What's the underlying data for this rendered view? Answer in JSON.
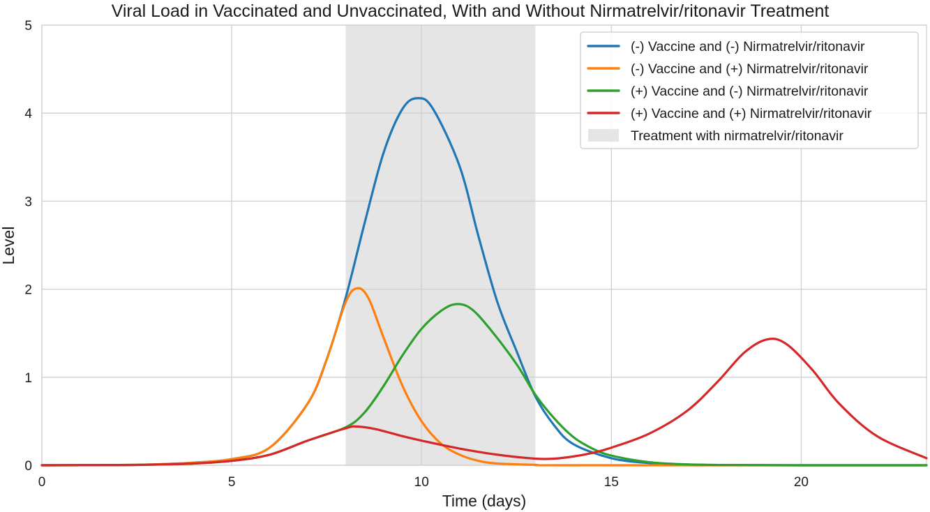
{
  "chart_data": {
    "type": "line",
    "title": "Viral Load in Vaccinated and Unvaccinated, With and Without Nirmatrelvir/ritonavir Treatment",
    "xlabel": "Time (days)",
    "ylabel": "Level",
    "xlim": [
      0,
      23.3
    ],
    "ylim": [
      0,
      5
    ],
    "x_ticks": [
      0,
      5,
      10,
      15,
      20
    ],
    "y_ticks": [
      0,
      1,
      2,
      3,
      4,
      5
    ],
    "grid": true,
    "legend_position": "top-right",
    "treatment_window": {
      "label": "Treatment with nirmatrelvir/ritonavir",
      "start": 8,
      "end": 13,
      "color": "#e5e5e5"
    },
    "series": [
      {
        "name": "(-) Vaccine and (-) Nirmatrelvir/ritonavir",
        "color": "#1f77b4",
        "points": [
          [
            0,
            0
          ],
          [
            2,
            0.003
          ],
          [
            3,
            0.01
          ],
          [
            4,
            0.03
          ],
          [
            5,
            0.07
          ],
          [
            6,
            0.2
          ],
          [
            7,
            0.7
          ],
          [
            7.5,
            1.2
          ],
          [
            8,
            1.9
          ],
          [
            8.5,
            2.75
          ],
          [
            9,
            3.55
          ],
          [
            9.5,
            4.05
          ],
          [
            9.9,
            4.17
          ],
          [
            10.3,
            4.05
          ],
          [
            11,
            3.4
          ],
          [
            11.5,
            2.6
          ],
          [
            12,
            1.85
          ],
          [
            12.5,
            1.3
          ],
          [
            13,
            0.78
          ],
          [
            13.5,
            0.45
          ],
          [
            14,
            0.24
          ],
          [
            15,
            0.08
          ],
          [
            16,
            0.025
          ],
          [
            17,
            0.008
          ],
          [
            18,
            0.002
          ],
          [
            20,
            0
          ],
          [
            23.3,
            0
          ]
        ]
      },
      {
        "name": "(-) Vaccine and (+) Nirmatrelvir/ritonavir",
        "color": "#ff7f0e",
        "points": [
          [
            0,
            0
          ],
          [
            2,
            0.003
          ],
          [
            3,
            0.01
          ],
          [
            4,
            0.03
          ],
          [
            5,
            0.07
          ],
          [
            6,
            0.2
          ],
          [
            7,
            0.7
          ],
          [
            7.5,
            1.2
          ],
          [
            8,
            1.85
          ],
          [
            8.3,
            2.01
          ],
          [
            8.6,
            1.9
          ],
          [
            9,
            1.45
          ],
          [
            9.5,
            0.9
          ],
          [
            10,
            0.5
          ],
          [
            10.5,
            0.25
          ],
          [
            11,
            0.12
          ],
          [
            11.5,
            0.05
          ],
          [
            12,
            0.02
          ],
          [
            13,
            0.005
          ],
          [
            14,
            0
          ],
          [
            23.3,
            0
          ]
        ]
      },
      {
        "name": "(+) Vaccine and (-) Nirmatrelvir/ritonavir",
        "color": "#2ca02c",
        "points": [
          [
            0,
            0
          ],
          [
            2,
            0.002
          ],
          [
            3,
            0.008
          ],
          [
            4,
            0.02
          ],
          [
            5,
            0.05
          ],
          [
            6,
            0.12
          ],
          [
            7,
            0.28
          ],
          [
            8,
            0.43
          ],
          [
            8.5,
            0.6
          ],
          [
            9,
            0.9
          ],
          [
            9.5,
            1.25
          ],
          [
            10,
            1.55
          ],
          [
            10.5,
            1.75
          ],
          [
            10.9,
            1.83
          ],
          [
            11.3,
            1.78
          ],
          [
            11.8,
            1.55
          ],
          [
            12.5,
            1.15
          ],
          [
            13,
            0.8
          ],
          [
            13.5,
            0.53
          ],
          [
            14,
            0.32
          ],
          [
            14.5,
            0.19
          ],
          [
            15,
            0.11
          ],
          [
            16,
            0.035
          ],
          [
            17,
            0.01
          ],
          [
            18,
            0.003
          ],
          [
            20,
            0
          ],
          [
            23.3,
            0
          ]
        ]
      },
      {
        "name": "(+) Vaccine and (+) Nirmatrelvir/ritonavir",
        "color": "#d62728",
        "points": [
          [
            0,
            0
          ],
          [
            2,
            0.002
          ],
          [
            3,
            0.008
          ],
          [
            4,
            0.02
          ],
          [
            5,
            0.05
          ],
          [
            6,
            0.12
          ],
          [
            7,
            0.28
          ],
          [
            8,
            0.42
          ],
          [
            8.3,
            0.44
          ],
          [
            8.8,
            0.41
          ],
          [
            9.5,
            0.33
          ],
          [
            10,
            0.28
          ],
          [
            11,
            0.19
          ],
          [
            12,
            0.12
          ],
          [
            13,
            0.075
          ],
          [
            13.5,
            0.075
          ],
          [
            14,
            0.1
          ],
          [
            14.5,
            0.14
          ],
          [
            15,
            0.2
          ],
          [
            16,
            0.36
          ],
          [
            17,
            0.62
          ],
          [
            17.8,
            0.95
          ],
          [
            18.5,
            1.28
          ],
          [
            19.1,
            1.43
          ],
          [
            19.6,
            1.38
          ],
          [
            20.3,
            1.08
          ],
          [
            21,
            0.7
          ],
          [
            22,
            0.33
          ],
          [
            23.3,
            0.08
          ]
        ]
      }
    ]
  }
}
